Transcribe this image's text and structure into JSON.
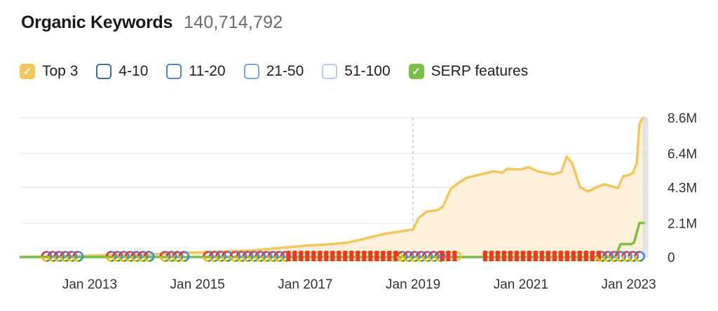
{
  "header": {
    "title": "Organic Keywords",
    "count": "140,714,792"
  },
  "legend": [
    {
      "label": "Top 3",
      "checked": true,
      "color": "#f4c65a",
      "border": "#f4c65a"
    },
    {
      "label": "4-10",
      "checked": false,
      "color": "#ffffff",
      "border": "#3a6fb8"
    },
    {
      "label": "11-20",
      "checked": false,
      "color": "#ffffff",
      "border": "#4d86d4"
    },
    {
      "label": "21-50",
      "checked": false,
      "color": "#ffffff",
      "border": "#7aa6e3"
    },
    {
      "label": "51-100",
      "checked": false,
      "color": "#ffffff",
      "border": "#b3cdf0"
    },
    {
      "label": "SERP features",
      "checked": true,
      "color": "#78c043",
      "border": "#78c043"
    }
  ],
  "chart_data": {
    "type": "area",
    "ylim": [
      0,
      8.6
    ],
    "y_ticks": [
      "8.6M",
      "6.4M",
      "4.3M",
      "2.1M",
      "0"
    ],
    "y_tick_values": [
      8.6,
      6.4,
      4.3,
      2.1,
      0
    ],
    "x_tick_labels": [
      "Jan 2013",
      "Jan 2015",
      "Jan 2017",
      "Jan 2019",
      "Jan 2021",
      "Jan 2023"
    ],
    "x_tick_values": [
      2013,
      2015,
      2017,
      2019,
      2021,
      2023
    ],
    "xlim": [
      2011.7,
      2023.5
    ],
    "marker_line_x": 2019.0,
    "series": [
      {
        "name": "Top 3",
        "color": "#f4c65a",
        "fill": "#fdf1dc",
        "x": [
          2011.7,
          2014.0,
          2015.5,
          2016.0,
          2016.5,
          2017.0,
          2017.5,
          2017.8,
          2018.0,
          2018.3,
          2018.5,
          2018.8,
          2019.0,
          2019.1,
          2019.25,
          2019.45,
          2019.55,
          2019.7,
          2019.85,
          2020.0,
          2020.25,
          2020.5,
          2020.65,
          2020.75,
          2021.0,
          2021.15,
          2021.3,
          2021.45,
          2021.6,
          2021.75,
          2021.85,
          2021.95,
          2022.1,
          2022.25,
          2022.4,
          2022.55,
          2022.7,
          2022.8,
          2022.9,
          2023.0,
          2023.08,
          2023.15,
          2023.2,
          2023.25,
          2023.3
        ],
        "y": [
          0,
          0.15,
          0.35,
          0.4,
          0.55,
          0.7,
          0.8,
          0.9,
          1.05,
          1.3,
          1.45,
          1.6,
          1.7,
          2.4,
          2.8,
          2.9,
          3.1,
          4.2,
          4.6,
          4.9,
          5.1,
          5.3,
          5.2,
          5.45,
          5.4,
          5.55,
          5.3,
          5.2,
          5.1,
          5.25,
          6.2,
          5.8,
          4.3,
          4.05,
          4.3,
          4.5,
          4.35,
          4.25,
          5.0,
          5.05,
          5.2,
          5.8,
          8.2,
          8.55,
          8.6
        ]
      },
      {
        "name": "SERP features",
        "color": "#78c043",
        "x": [
          2011.7,
          2022.75,
          2022.85,
          2023.05,
          2023.1,
          2023.2,
          2023.3
        ],
        "y": [
          0,
          0,
          0.8,
          0.8,
          0.9,
          2.1,
          2.1
        ]
      }
    ],
    "event_markers": {
      "color_g": "#4285f4",
      "color_r": "#e53935",
      "color_y": "#fbbc05",
      "color_gr": "#34a853",
      "groups": [
        {
          "from": 2012.2,
          "to": 2012.9,
          "kind": "google"
        },
        {
          "from": 2013.4,
          "to": 2014.2,
          "kind": "google"
        },
        {
          "from": 2014.4,
          "to": 2014.8,
          "kind": "google"
        },
        {
          "from": 2015.2,
          "to": 2015.6,
          "kind": "google"
        },
        {
          "from": 2015.7,
          "to": 2016.7,
          "kind": "google"
        },
        {
          "from": 2016.7,
          "to": 2018.8,
          "kind": "flag"
        },
        {
          "from": 2018.8,
          "to": 2019.55,
          "kind": "google"
        },
        {
          "from": 2019.55,
          "to": 2019.9,
          "kind": "flag"
        },
        {
          "from": 2020.35,
          "to": 2022.5,
          "kind": "flag"
        },
        {
          "from": 2022.5,
          "to": 2023.3,
          "kind": "google"
        }
      ]
    }
  }
}
